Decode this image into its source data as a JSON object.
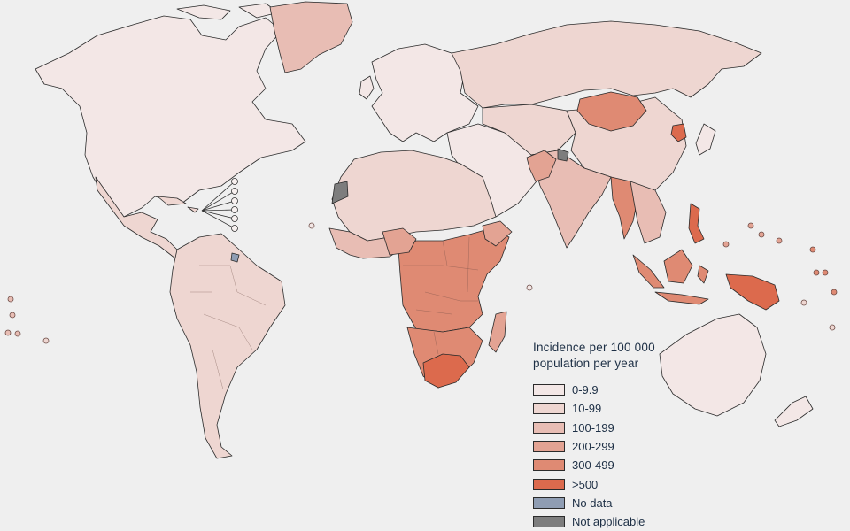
{
  "legend": {
    "title": "Incidence per 100 000 population per year",
    "items": [
      {
        "label": "0-9.9",
        "color": "#f3e7e6"
      },
      {
        "label": "10-99",
        "color": "#eed6d1"
      },
      {
        "label": "100-199",
        "color": "#e8bdb4"
      },
      {
        "label": "200-299",
        "color": "#e3a393"
      },
      {
        "label": "300-499",
        "color": "#df8a73"
      },
      {
        "label": ">500",
        "color": "#dc6a4d"
      },
      {
        "label": "No data",
        "color": "#8f9db3"
      },
      {
        "label": "Not applicable",
        "color": "#7d7d7d"
      }
    ]
  }
}
